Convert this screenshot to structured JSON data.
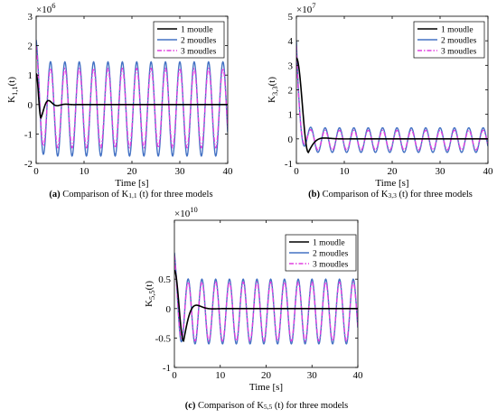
{
  "chart_data": [
    {
      "type": "line",
      "caption_id": "(a)",
      "caption_text": " Comparison of K",
      "caption_sub": "1,1",
      "caption_tail": " (t) for three models",
      "ylabel_main": "K",
      "ylabel_sub": "1,1",
      "ylabel_tail": "(t)",
      "xlabel": "Time [s]",
      "exponent_base": "×10",
      "exponent_power": "6",
      "xlim": [
        0,
        40
      ],
      "ylim": [
        -2,
        3
      ],
      "xticks": [
        0,
        10,
        20,
        30,
        40
      ],
      "yticks": [
        -2,
        -1,
        0,
        1,
        2,
        3
      ],
      "legend_position": "top-right",
      "series": [
        {
          "name": "1 moudle",
          "color": "#000000",
          "dash": "solid",
          "kind": "damped",
          "start": 1.05,
          "trough": -0.45,
          "trough_t": 1.0,
          "settle": 0.0
        },
        {
          "name": "2 moudles",
          "color": "#4472c4",
          "dash": "solid",
          "kind": "osc",
          "start": 2.2,
          "amplitude": 1.6,
          "offset": -0.15,
          "period": 3.0
        },
        {
          "name": "3 moudles",
          "color": "#e040e0",
          "dash": "dashdot",
          "kind": "osc",
          "start": 2.0,
          "amplitude": 1.35,
          "offset": -0.12,
          "period": 3.0
        }
      ]
    },
    {
      "type": "line",
      "caption_id": "(b)",
      "caption_text": " Comparison of K",
      "caption_sub": "3,3",
      "caption_tail": " (t) for three models",
      "ylabel_main": "K",
      "ylabel_sub": "3,3",
      "ylabel_tail": "(t)",
      "xlabel": "Time [s]",
      "exponent_base": "×10",
      "exponent_power": "7",
      "xlim": [
        0,
        40
      ],
      "ylim": [
        -1,
        5
      ],
      "xticks": [
        0,
        10,
        20,
        30,
        40
      ],
      "yticks": [
        -1,
        0,
        1,
        2,
        3,
        4,
        5
      ],
      "legend_position": "top-right",
      "series": [
        {
          "name": "1 moudle",
          "color": "#000000",
          "dash": "solid",
          "kind": "damped",
          "start": 3.3,
          "trough": -0.55,
          "trough_t": 2.5,
          "settle": 0.0
        },
        {
          "name": "2 moudles",
          "color": "#4472c4",
          "dash": "solid",
          "kind": "osc",
          "start": 4.0,
          "amplitude": 0.5,
          "offset": -0.05,
          "period": 3.0
        },
        {
          "name": "3 moudles",
          "color": "#e040e0",
          "dash": "dashdot",
          "kind": "osc",
          "start": 3.8,
          "amplitude": 0.4,
          "offset": -0.05,
          "period": 3.0
        }
      ]
    },
    {
      "type": "line",
      "caption_id": "(c)",
      "caption_text": " Comparison of K",
      "caption_sub": "5,5",
      "caption_tail": " (t) for three models",
      "ylabel_main": "K",
      "ylabel_sub": "5,5",
      "ylabel_tail": "(t)",
      "xlabel": "Time [s]",
      "exponent_base": "×10",
      "exponent_power": "10",
      "xlim": [
        0,
        40
      ],
      "ylim": [
        -1,
        1.5
      ],
      "xticks": [
        0,
        10,
        20,
        30,
        40
      ],
      "yticks": [
        -1,
        -0.5,
        0,
        0.5
      ],
      "legend_position": "top-right",
      "series": [
        {
          "name": "1 moudle",
          "color": "#000000",
          "dash": "solid",
          "kind": "damped",
          "start": 0.65,
          "trough": -0.55,
          "trough_t": 2.0,
          "settle": 0.0
        },
        {
          "name": "2 moudles",
          "color": "#4472c4",
          "dash": "solid",
          "kind": "osc",
          "start": 0.95,
          "amplitude": 0.55,
          "offset": -0.05,
          "period": 3.0
        },
        {
          "name": "3 moudles",
          "color": "#e040e0",
          "dash": "dashdot",
          "kind": "osc",
          "start": 0.9,
          "amplitude": 0.5,
          "offset": -0.05,
          "period": 3.0
        }
      ]
    }
  ]
}
